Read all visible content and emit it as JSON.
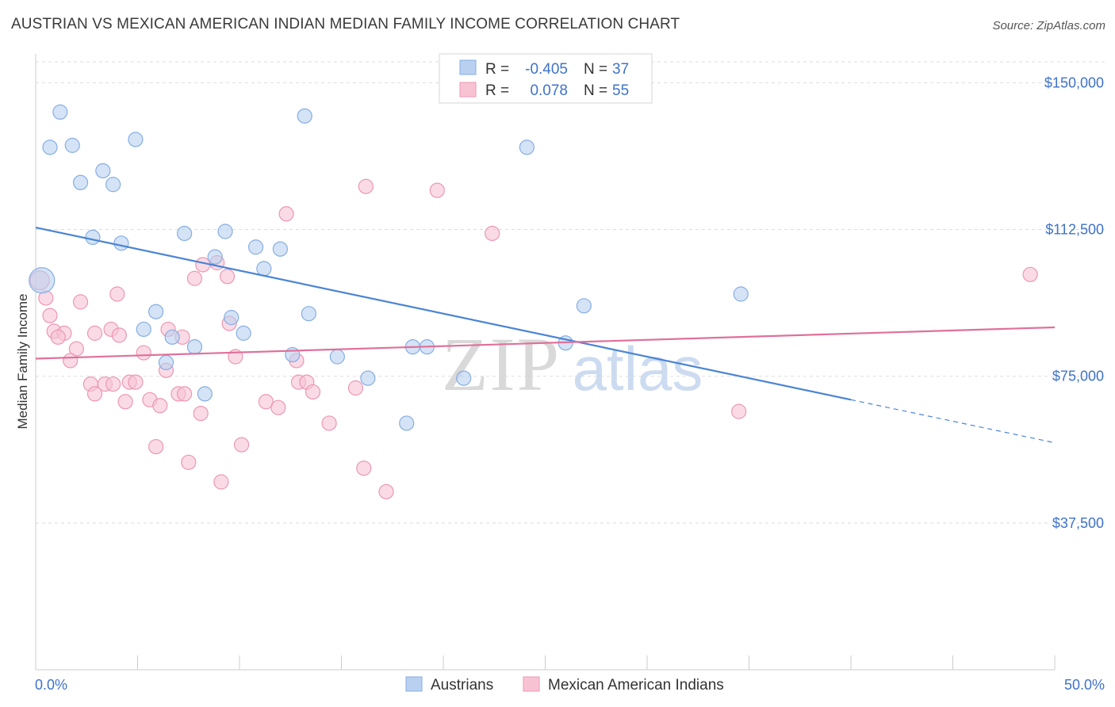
{
  "title": "AUSTRIAN VS MEXICAN AMERICAN INDIAN MEDIAN FAMILY INCOME CORRELATION CHART",
  "source": "Source: ZipAtlas.com",
  "watermark": {
    "zip": "ZIP",
    "atlas": "atlas"
  },
  "colors": {
    "blue": "#4a84d4",
    "blue_fill": "#b9d0f0",
    "blue_stroke": "#86aee3",
    "pink": "#e0709a",
    "pink_fill": "#f7c3d3",
    "pink_stroke": "#ec97b4",
    "tick_text": "#3f73c9"
  },
  "legend": {
    "rows": [
      {
        "r_label": "R =",
        "r_value": "-0.405",
        "n_label": "N =",
        "n_value": "37"
      },
      {
        "r_label": "R =",
        "r_value": "0.078",
        "n_label": "N =",
        "n_value": "55"
      }
    ]
  },
  "chart_data": {
    "type": "scatter",
    "title": "AUSTRIAN VS MEXICAN AMERICAN INDIAN MEDIAN FAMILY INCOME CORRELATION CHART",
    "xlabel": "",
    "ylabel": "Median Family Income",
    "xlim": [
      0,
      50
    ],
    "ylim": [
      0,
      160000
    ],
    "x_tick_labels": [
      "0.0%",
      "50.0%"
    ],
    "y_ticks": [
      37500,
      75000,
      112500,
      150000
    ],
    "y_tick_labels": [
      "$37,500",
      "$75,000",
      "$112,500",
      "$150,000"
    ],
    "grid": "horizontal dashed",
    "legend_position": "top-center",
    "series": [
      {
        "name": "Austrians",
        "color": "#4a84d4",
        "r": -0.405,
        "n": 37,
        "trend": {
          "x0": 0,
          "y0": 113000,
          "x1": 40,
          "y1": 69000,
          "dash_to_x": 50,
          "dash_to_y": 58000
        },
        "points": [
          [
            0.3,
            99500,
            16
          ],
          [
            1.2,
            142500,
            9
          ],
          [
            0.7,
            133500,
            9
          ],
          [
            1.8,
            134000,
            9
          ],
          [
            2.2,
            124500,
            9
          ],
          [
            3.3,
            127500,
            9
          ],
          [
            3.8,
            124000,
            9
          ],
          [
            4.9,
            135500,
            9
          ],
          [
            2.8,
            110500,
            9
          ],
          [
            4.2,
            109000,
            9
          ],
          [
            7.3,
            111500,
            9
          ],
          [
            9.3,
            112000,
            9
          ],
          [
            8.8,
            105500,
            9
          ],
          [
            10.8,
            108000,
            9
          ],
          [
            12.0,
            107500,
            9
          ],
          [
            11.2,
            102500,
            9
          ],
          [
            13.2,
            141500,
            9
          ],
          [
            5.9,
            91500,
            9
          ],
          [
            5.3,
            87000,
            9
          ],
          [
            9.6,
            90000,
            9
          ],
          [
            10.2,
            86000,
            9
          ],
          [
            13.4,
            91000,
            9
          ],
          [
            6.7,
            85000,
            9
          ],
          [
            7.8,
            82500,
            9
          ],
          [
            12.6,
            80500,
            9
          ],
          [
            14.8,
            80000,
            9
          ],
          [
            18.5,
            82500,
            9
          ],
          [
            19.2,
            82500,
            9
          ],
          [
            6.4,
            78500,
            9
          ],
          [
            16.3,
            74500,
            9
          ],
          [
            21.0,
            74500,
            9
          ],
          [
            8.3,
            70500,
            9
          ],
          [
            18.2,
            63000,
            9
          ],
          [
            24.1,
            133500,
            9
          ],
          [
            26.9,
            93000,
            9
          ],
          [
            26.0,
            83500,
            9
          ],
          [
            34.6,
            96000,
            9
          ]
        ]
      },
      {
        "name": "Mexican American Indians",
        "color": "#e0709a",
        "r": 0.078,
        "n": 55,
        "trend": {
          "x0": 0,
          "y0": 79500,
          "x1": 50,
          "y1": 87500
        },
        "points": [
          [
            0.2,
            99500,
            12
          ],
          [
            0.5,
            95000,
            9
          ],
          [
            0.7,
            90500,
            9
          ],
          [
            0.9,
            86500,
            9
          ],
          [
            1.4,
            86000,
            9
          ],
          [
            1.1,
            85000,
            9
          ],
          [
            2.2,
            94000,
            9
          ],
          [
            2.0,
            82000,
            9
          ],
          [
            1.7,
            79000,
            9
          ],
          [
            2.9,
            86000,
            9
          ],
          [
            3.7,
            87000,
            9
          ],
          [
            4.1,
            85500,
            9
          ],
          [
            4.0,
            96000,
            9
          ],
          [
            5.3,
            81000,
            9
          ],
          [
            6.5,
            87000,
            9
          ],
          [
            7.2,
            85000,
            9
          ],
          [
            7.8,
            100000,
            9
          ],
          [
            8.2,
            103500,
            9
          ],
          [
            8.9,
            104000,
            9
          ],
          [
            9.4,
            100500,
            9
          ],
          [
            9.5,
            88500,
            9
          ],
          [
            9.8,
            80000,
            9
          ],
          [
            12.3,
            116500,
            9
          ],
          [
            12.8,
            79000,
            9
          ],
          [
            6.4,
            76500,
            9
          ],
          [
            3.4,
            73000,
            9
          ],
          [
            3.8,
            73000,
            9
          ],
          [
            4.6,
            73500,
            9
          ],
          [
            4.9,
            73500,
            9
          ],
          [
            2.7,
            73000,
            9
          ],
          [
            2.9,
            70500,
            9
          ],
          [
            4.4,
            68500,
            9
          ],
          [
            5.6,
            69000,
            9
          ],
          [
            6.1,
            67500,
            9
          ],
          [
            7.0,
            70500,
            9
          ],
          [
            7.3,
            70500,
            9
          ],
          [
            8.1,
            65500,
            9
          ],
          [
            11.3,
            68500,
            9
          ],
          [
            11.9,
            67000,
            9
          ],
          [
            12.9,
            73500,
            9
          ],
          [
            13.3,
            73500,
            9
          ],
          [
            13.6,
            71000,
            9
          ],
          [
            15.7,
            72000,
            9
          ],
          [
            14.4,
            63000,
            9
          ],
          [
            5.9,
            57000,
            9
          ],
          [
            10.1,
            57500,
            9
          ],
          [
            7.5,
            53000,
            9
          ],
          [
            9.1,
            48000,
            9
          ],
          [
            16.1,
            51500,
            9
          ],
          [
            17.2,
            45500,
            9
          ],
          [
            16.2,
            123500,
            9
          ],
          [
            19.7,
            122500,
            9
          ],
          [
            22.4,
            111500,
            9
          ],
          [
            34.5,
            66000,
            9
          ],
          [
            48.8,
            101000,
            9
          ]
        ]
      }
    ]
  }
}
